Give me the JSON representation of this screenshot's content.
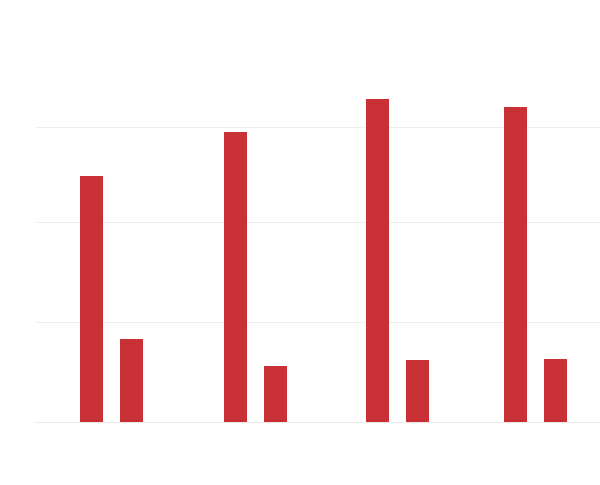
{
  "chart_data": {
    "type": "bar",
    "title": "",
    "xlabel": "",
    "ylabel": "",
    "categories": [
      "",
      "",
      "",
      ""
    ],
    "series": [
      {
        "values": [
          246,
          290,
          323,
          315
        ]
      },
      {
        "values": [
          83,
          56,
          62,
          63
        ]
      }
    ],
    "ylim": [
      0,
      325
    ],
    "gridlines": [
      100,
      200,
      295
    ],
    "grid": true,
    "legend": "none",
    "colors": {
      "bar": "#c93136",
      "grid": "#eeeeee",
      "baseline": "#e9e9e9",
      "background": "#ffffff"
    }
  }
}
